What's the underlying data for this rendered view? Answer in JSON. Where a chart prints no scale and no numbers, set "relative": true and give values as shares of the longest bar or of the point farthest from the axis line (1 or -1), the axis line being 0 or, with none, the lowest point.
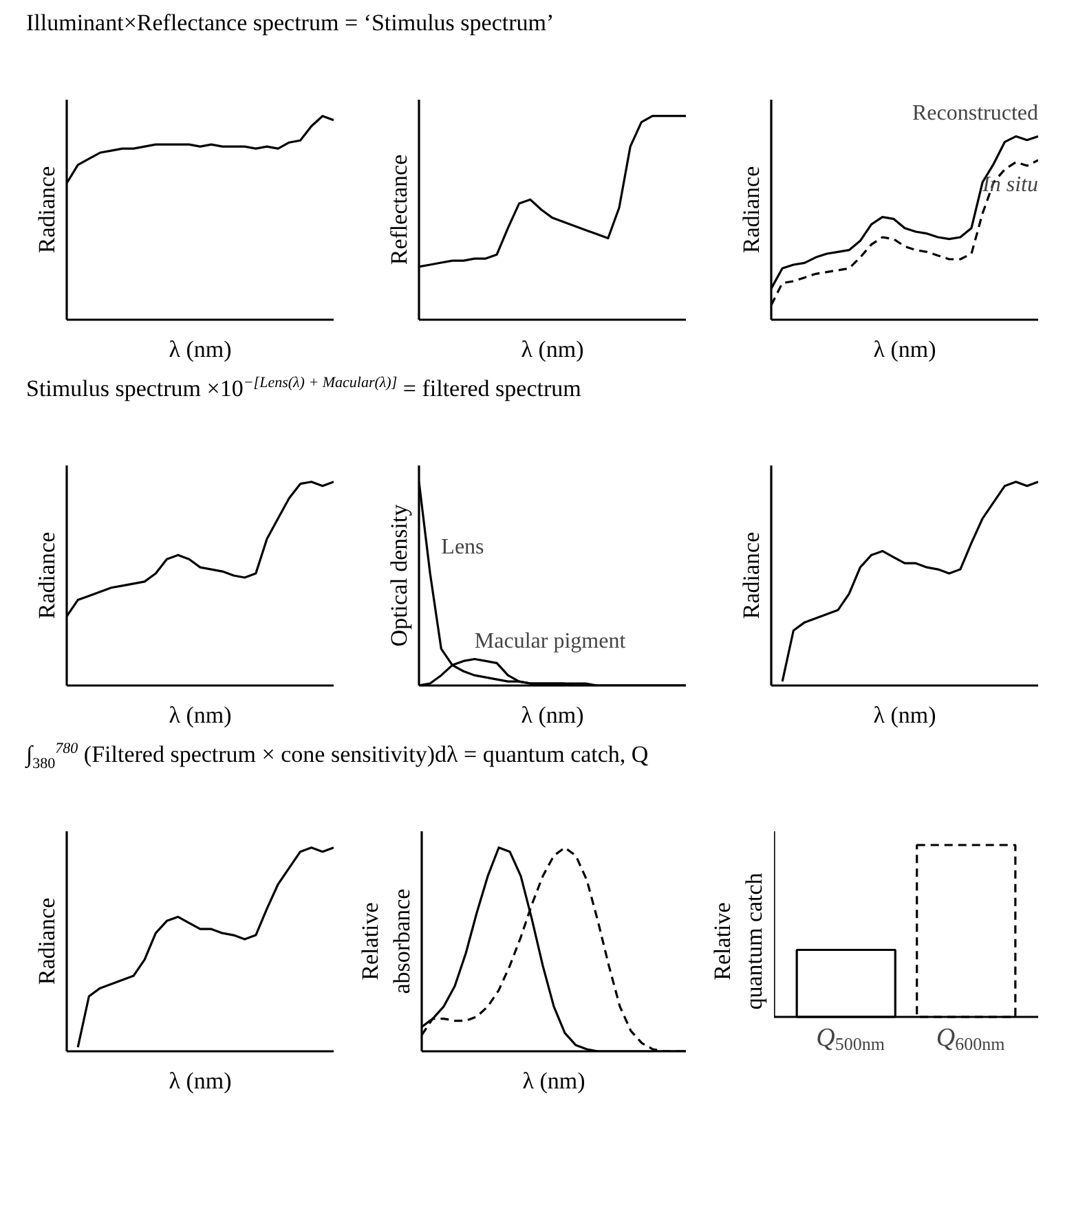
{
  "chart_data": [
    {
      "type": "line",
      "title": "Illuminant×Reflectance spectrum = ‘Stimulus spectrum’",
      "relative": true,
      "xlabel": "λ (nm)",
      "ylabel": "Radiance",
      "categories": [
        null,
        null,
        null,
        null,
        null,
        null,
        null,
        null,
        null,
        null,
        null,
        null,
        null,
        null,
        null,
        null,
        null,
        null,
        null,
        null,
        null,
        null,
        null,
        null,
        null
      ],
      "color": "#000000",
      "values": [
        0.67,
        0.76,
        0.79,
        0.82,
        0.83,
        0.84,
        0.84,
        0.85,
        0.86,
        0.86,
        0.86,
        0.86,
        0.85,
        0.86,
        0.85,
        0.85,
        0.85,
        0.84,
        0.85,
        0.84,
        0.87,
        0.88,
        0.95,
        1.0,
        0.98
      ]
    },
    {
      "type": "line",
      "relative": true,
      "xlabel": "λ (nm)",
      "ylabel": "Reflectance",
      "categories": [
        null,
        null,
        null,
        null,
        null,
        null,
        null,
        null,
        null,
        null,
        null,
        null,
        null,
        null,
        null,
        null,
        null,
        null,
        null,
        null,
        null,
        null,
        null,
        null,
        null
      ],
      "color": "#000000",
      "values": [
        0.26,
        0.27,
        0.28,
        0.29,
        0.29,
        0.3,
        0.3,
        0.32,
        0.45,
        0.57,
        0.59,
        0.54,
        0.5,
        0.48,
        0.46,
        0.44,
        0.42,
        0.4,
        0.55,
        0.85,
        0.97,
        1.0,
        1.0,
        1.0,
        1.0
      ]
    },
    {
      "type": "line",
      "relative": true,
      "xlabel": "λ (nm)",
      "ylabel": "Radiance",
      "categories": [
        null,
        null,
        null,
        null,
        null,
        null,
        null,
        null,
        null,
        null,
        null,
        null,
        null,
        null,
        null,
        null,
        null,
        null,
        null,
        null,
        null,
        null,
        null,
        null,
        null
      ],
      "series": [
        {
          "name": "Reconstructed",
          "color": "#000000",
          "line_style": "solid",
          "values": [
            0.17,
            0.28,
            0.3,
            0.31,
            0.34,
            0.36,
            0.37,
            0.38,
            0.43,
            0.52,
            0.56,
            0.55,
            0.5,
            0.48,
            0.47,
            0.45,
            0.44,
            0.45,
            0.5,
            0.75,
            0.85,
            0.97,
            1.0,
            0.98,
            1.0
          ]
        },
        {
          "name": "In situ",
          "color": "#000000",
          "line_style": "dashed",
          "values": [
            0.08,
            0.2,
            0.21,
            0.23,
            0.25,
            0.26,
            0.27,
            0.28,
            0.34,
            0.41,
            0.45,
            0.44,
            0.4,
            0.38,
            0.37,
            0.35,
            0.33,
            0.33,
            0.36,
            0.58,
            0.75,
            0.82,
            0.86,
            0.84,
            0.87
          ]
        }
      ]
    },
    {
      "type": "line",
      "title": "Stimulus spectrum ×10$^{−[Lens(λ) + Macular(λ)]}$ = filtered spectrum",
      "relative": true,
      "xlabel": "λ (nm)",
      "ylabel": "Radiance",
      "categories": [
        null,
        null,
        null,
        null,
        null,
        null,
        null,
        null,
        null,
        null,
        null,
        null,
        null,
        null,
        null,
        null,
        null,
        null,
        null,
        null,
        null,
        null,
        null,
        null,
        null
      ],
      "color": "#000000",
      "values": [
        0.34,
        0.42,
        0.44,
        0.46,
        0.48,
        0.49,
        0.5,
        0.51,
        0.55,
        0.62,
        0.64,
        0.62,
        0.58,
        0.57,
        0.56,
        0.54,
        0.53,
        0.55,
        0.72,
        0.82,
        0.92,
        0.99,
        1.0,
        0.98,
        1.0
      ]
    },
    {
      "type": "line",
      "relative": true,
      "xlabel": "λ (nm)",
      "ylabel": "Optical density",
      "categories": [
        null,
        null,
        null,
        null,
        null,
        null,
        null,
        null,
        null,
        null,
        null,
        null,
        null,
        null,
        null,
        null,
        null,
        null,
        null,
        null,
        null,
        null,
        null,
        null,
        null
      ],
      "series": [
        {
          "name": "Lens",
          "color": "#000000",
          "values": [
            1.0,
            0.55,
            0.18,
            0.1,
            0.07,
            0.05,
            0.04,
            0.03,
            0.02,
            0.02,
            0.01,
            0.01,
            0.01,
            0.01,
            0.01,
            0.01,
            0.0,
            0.0,
            0.0,
            0.0,
            0.0,
            0.0,
            0.0,
            0.0,
            0.0
          ]
        },
        {
          "name": "Macular pigment",
          "color": "#000000",
          "values": [
            0.0,
            0.01,
            0.05,
            0.1,
            0.12,
            0.13,
            0.12,
            0.11,
            0.05,
            0.02,
            0.01,
            0.01,
            0.01,
            0.01,
            0.0,
            0.0,
            0.0,
            0.0,
            0.0,
            0.0,
            0.0,
            0.0,
            0.0,
            0.0,
            0.0
          ]
        }
      ]
    },
    {
      "type": "line",
      "relative": true,
      "xlabel": "λ (nm)",
      "ylabel": "Radiance",
      "categories": [
        null,
        null,
        null,
        null,
        null,
        null,
        null,
        null,
        null,
        null,
        null,
        null,
        null,
        null,
        null,
        null,
        null,
        null,
        null,
        null,
        null,
        null,
        null,
        null,
        null
      ],
      "color": "#000000",
      "values": [
        null,
        0.02,
        0.27,
        0.31,
        0.33,
        0.35,
        0.37,
        0.45,
        0.58,
        0.64,
        0.66,
        0.63,
        0.6,
        0.6,
        0.58,
        0.57,
        0.55,
        0.57,
        0.7,
        0.82,
        0.9,
        0.98,
        1.0,
        0.98,
        1.0
      ]
    },
    {
      "type": "line",
      "title": "∫$_{380}$$^{780}$ (Filtered spectrum × cone sensitivity)dλ = quantum catch, Q",
      "relative": true,
      "xlabel": "λ (nm)",
      "ylabel": "Radiance",
      "categories": [
        null,
        null,
        null,
        null,
        null,
        null,
        null,
        null,
        null,
        null,
        null,
        null,
        null,
        null,
        null,
        null,
        null,
        null,
        null,
        null,
        null,
        null,
        null,
        null,
        null
      ],
      "color": "#000000",
      "values": [
        null,
        0.02,
        0.27,
        0.31,
        0.33,
        0.35,
        0.37,
        0.45,
        0.58,
        0.64,
        0.66,
        0.63,
        0.6,
        0.6,
        0.58,
        0.57,
        0.55,
        0.57,
        0.7,
        0.82,
        0.9,
        0.98,
        1.0,
        0.98,
        1.0
      ]
    },
    {
      "type": "line",
      "relative": true,
      "xlabel": "λ (nm)",
      "ylabel": "Relative\nabsorbance",
      "categories": [
        null,
        null,
        null,
        null,
        null,
        null,
        null,
        null,
        null,
        null,
        null,
        null,
        null,
        null,
        null,
        null,
        null,
        null,
        null,
        null,
        null,
        null,
        null,
        null,
        null
      ],
      "series": [
        {
          "color": "#000000",
          "line_style": "solid",
          "values": [
            0.12,
            0.16,
            0.22,
            0.32,
            0.48,
            0.68,
            0.86,
            1.0,
            0.98,
            0.86,
            0.65,
            0.42,
            0.22,
            0.09,
            0.03,
            0.01,
            0.0,
            0.0,
            0.0,
            0.0,
            0.0,
            0.0,
            0.0,
            0.0,
            0.0
          ]
        },
        {
          "color": "#000000",
          "line_style": "dashed",
          "values": [
            0.08,
            0.16,
            0.16,
            0.15,
            0.15,
            0.17,
            0.22,
            0.3,
            0.42,
            0.56,
            0.72,
            0.86,
            0.96,
            1.0,
            0.96,
            0.84,
            0.64,
            0.42,
            0.22,
            0.1,
            0.04,
            0.01,
            0.0,
            0.0,
            0.0
          ]
        }
      ]
    },
    {
      "type": "bar",
      "relative": true,
      "ylabel": "Relative\nquantum catch",
      "categories": [
        "Q$_{500nm}$",
        "Q$_{600nm}$"
      ],
      "series": [
        {
          "color": "#000000",
          "line_style": "solid",
          "values": [
            0.39,
            null
          ]
        },
        {
          "color": "#000000",
          "line_style": "dashed",
          "values": [
            null,
            1.0
          ]
        }
      ]
    }
  ]
}
